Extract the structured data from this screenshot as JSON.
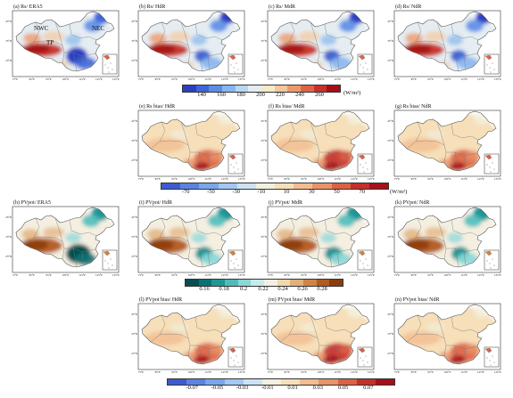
{
  "panels": [
    {
      "id": "a",
      "label": "(a) Rs/ ERA5",
      "row": 0,
      "col": 0,
      "kind": "rs",
      "variant": "era5",
      "regions": [
        "NWC",
        "TP",
        "NEC"
      ]
    },
    {
      "id": "b",
      "label": "(b) Rs/ HdR",
      "row": 0,
      "col": 1,
      "kind": "rs",
      "variant": "hdr",
      "regions": []
    },
    {
      "id": "c",
      "label": "(c) Rs/ MdR",
      "row": 0,
      "col": 2,
      "kind": "rs",
      "variant": "mdr",
      "regions": []
    },
    {
      "id": "d",
      "label": "(d) Rs/ NdR",
      "row": 0,
      "col": 3,
      "kind": "rs",
      "variant": "ndr",
      "regions": []
    },
    {
      "id": "e",
      "label": "(e) Rs bias/ HdR",
      "row": 1,
      "col": 1,
      "kind": "bias",
      "variant": "hdr",
      "regions": []
    },
    {
      "id": "f",
      "label": "(f) Rs bias/ MdR",
      "row": 1,
      "col": 2,
      "kind": "bias",
      "variant": "mdr",
      "regions": []
    },
    {
      "id": "g",
      "label": "(g) Rs bias/ NdR",
      "row": 1,
      "col": 3,
      "kind": "bias",
      "variant": "ndr",
      "regions": []
    },
    {
      "id": "h",
      "label": "(h) PVpot/ ERA5",
      "row": 2,
      "col": 0,
      "kind": "pv",
      "variant": "era5",
      "regions": []
    },
    {
      "id": "i",
      "label": "(i) PVpot/ HdR",
      "row": 2,
      "col": 1,
      "kind": "pv",
      "variant": "hdr",
      "regions": []
    },
    {
      "id": "j",
      "label": "(j) PVpot/ MdR",
      "row": 2,
      "col": 2,
      "kind": "pv",
      "variant": "mdr",
      "regions": []
    },
    {
      "id": "k",
      "label": "(k) PVpot/ NdR",
      "row": 2,
      "col": 3,
      "kind": "pv",
      "variant": "ndr",
      "regions": []
    },
    {
      "id": "l",
      "label": "(l) PVpot bias/ HdR",
      "row": 3,
      "col": 1,
      "kind": "bias",
      "variant": "hdr",
      "regions": []
    },
    {
      "id": "m",
      "label": "(m) PVpot bias/ MdR",
      "row": 3,
      "col": 2,
      "kind": "bias",
      "variant": "mdr",
      "regions": []
    },
    {
      "id": "n",
      "label": "(n) PVpot bias/ NdR",
      "row": 3,
      "col": 3,
      "kind": "bias",
      "variant": "ndr",
      "regions": []
    }
  ],
  "axis_labels": {
    "lat": [
      "45°N",
      "35°N",
      "25°N"
    ],
    "lon": [
      "75°E",
      "85°E",
      "95°E",
      "105°E",
      "115°E",
      "125°E",
      "135°E"
    ]
  },
  "colorbars": [
    {
      "id": "rs",
      "ticks": [
        "140",
        "160",
        "180",
        "200",
        "220",
        "240",
        "260"
      ],
      "unit": "(W/m²)",
      "colors": [
        "#2c3fc2",
        "#3f66d8",
        "#5b8de6",
        "#86b6ef",
        "#b7d8f4",
        "#e5edf2",
        "#f6e9c9",
        "#f3c79a",
        "#ec9a6d",
        "#df6447",
        "#c83127",
        "#a30f16"
      ]
    },
    {
      "id": "rsbias",
      "ticks": [
        "-70",
        "-50",
        "-30",
        "-10",
        "10",
        "30",
        "50",
        "70"
      ],
      "unit": "(W/m²)",
      "colors": [
        "#3d5bd0",
        "#5a84df",
        "#7aa7ea",
        "#a3c8f1",
        "#cde3f5",
        "#f2f0df",
        "#f6dfb9",
        "#f2bd91",
        "#e9936a",
        "#dc6245",
        "#c5302a",
        "#a6101a"
      ]
    },
    {
      "id": "pv",
      "ticks": [
        "0.16",
        "0.18",
        "0.2",
        "0.22",
        "0.24",
        "0.26",
        "0.28"
      ],
      "unit": "",
      "colors": [
        "#064f4f",
        "#0b7272",
        "#1f9797",
        "#4fbcbc",
        "#8ad7d7",
        "#c5ebeb",
        "#f4efe1",
        "#efd8b0",
        "#e2b07b",
        "#cf8447",
        "#b35a1f",
        "#8c3c0c"
      ]
    },
    {
      "id": "pvbias",
      "ticks": [
        "-0.07",
        "-0.05",
        "-0.03",
        "-0.01",
        "0.01",
        "0.03",
        "0.05",
        "0.07"
      ],
      "unit": "",
      "colors": [
        "#3d5bd0",
        "#5a84df",
        "#7aa7ea",
        "#a3c8f1",
        "#cde3f5",
        "#f2f0df",
        "#f6dfb9",
        "#f2bd91",
        "#e9936a",
        "#dc6245",
        "#c5302a",
        "#a6101a"
      ]
    }
  ],
  "palettes": {
    "ocean": "#ffffff",
    "border": "#555555",
    "inner_lines": "#777777"
  }
}
